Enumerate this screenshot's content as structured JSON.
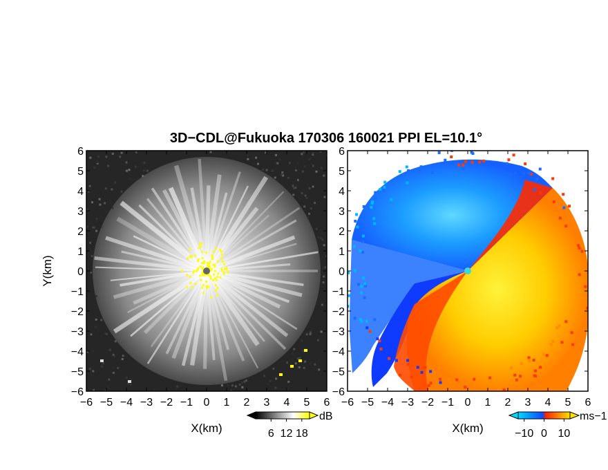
{
  "chart_data": [
    {
      "type": "heatmap",
      "panel": "left",
      "variable": "signal intensity",
      "title": "3D−CDL@Fukuoka 170306 160021 PPI EL=10.1°",
      "xlabel": "X(km)",
      "ylabel": "Y(km)",
      "xlim": [
        -6,
        6
      ],
      "ylim": [
        -6,
        6
      ],
      "xticks": [
        -6,
        -5,
        -4,
        -3,
        -2,
        -1,
        0,
        1,
        2,
        3,
        4,
        5,
        6
      ],
      "yticks": [
        -6,
        -5,
        -4,
        -3,
        -2,
        -1,
        0,
        1,
        2,
        3,
        4,
        5,
        6
      ],
      "colorbar": {
        "unit": "dB",
        "ticks": [
          6,
          12,
          18
        ],
        "range": [
          0,
          21
        ],
        "colormap": [
          "#000000",
          "#ffffff",
          "#ffff00"
        ],
        "extend": "both"
      },
      "range_extent_km": 5.6
    },
    {
      "type": "heatmap",
      "panel": "right",
      "variable": "radial velocity",
      "xlabel": "X(km)",
      "xlim": [
        -6,
        6
      ],
      "ylim": [
        -6,
        6
      ],
      "xticks": [
        -6,
        -5,
        -4,
        -3,
        -2,
        -1,
        0,
        1,
        2,
        3,
        4,
        5,
        6
      ],
      "yticks": [
        -6,
        -5,
        -4,
        -3,
        -2,
        -1,
        0,
        1,
        2,
        3,
        4,
        5,
        6
      ],
      "colorbar": {
        "unit": "ms−1",
        "ticks": [
          -10,
          0,
          10
        ],
        "range": [
          -13,
          13
        ],
        "colormap": [
          "#00d8ff",
          "#0a4cff",
          "#ff2200",
          "#ffe000"
        ],
        "extend": "both"
      },
      "range_extent_km": 6
    }
  ]
}
